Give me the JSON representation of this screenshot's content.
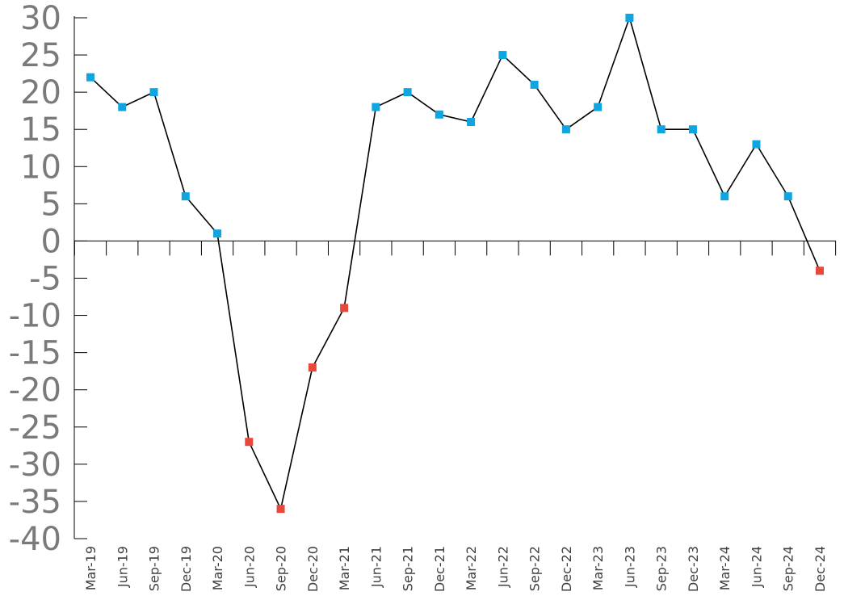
{
  "chart_data": {
    "type": "line",
    "title": "",
    "xlabel": "",
    "ylabel": "",
    "ylim": [
      -40,
      30
    ],
    "yticks": [
      30,
      25,
      20,
      15,
      10,
      5,
      0,
      -5,
      -10,
      -15,
      -20,
      -25,
      -30,
      -35,
      -40
    ],
    "ytick_labels": [
      "30",
      "25",
      "20",
      "15",
      "10",
      "5",
      "0",
      "-5",
      "-10",
      "-15",
      "-20",
      "-25",
      "-30",
      "-35",
      "-40"
    ],
    "grid": false,
    "legend": "none",
    "categories": [
      "Mar-19",
      "Jun-19",
      "Sep-19",
      "Dec-19",
      "Mar-20",
      "Jun-20",
      "Sep-20",
      "Dec-20",
      "Mar-21",
      "Jun-21",
      "Sep-21",
      "Dec-21",
      "Mar-22",
      "Jun-22",
      "Sep-22",
      "Dec-22",
      "Mar-23",
      "Jun-23",
      "Sep-23",
      "Dec-23",
      "Mar-24",
      "Jun-24",
      "Sep-24",
      "Dec-24"
    ],
    "series": [
      {
        "values": [
          22,
          18,
          20,
          6,
          1,
          -27,
          -36,
          -17,
          -9,
          18,
          20,
          17,
          16,
          25,
          21,
          15,
          18,
          30,
          15,
          15,
          6,
          13,
          6,
          -4
        ]
      }
    ],
    "colors": {
      "line": "#000000",
      "positive_marker": "#0ea5e0",
      "negative_marker": "#e8473a",
      "axis": "#000000"
    }
  }
}
